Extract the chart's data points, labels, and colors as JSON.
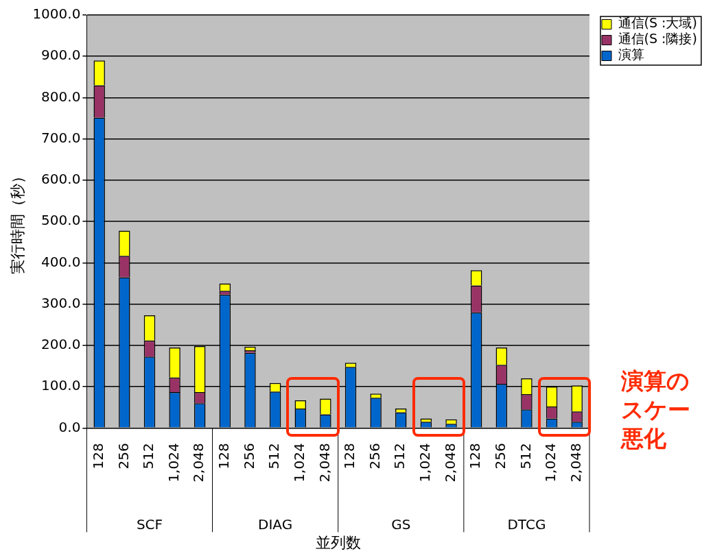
{
  "chart_data": {
    "type": "bar",
    "stacked": true,
    "xlabel": "並列数",
    "ylabel": "実行時間（秒）",
    "categories": [
      "128",
      "256",
      "512",
      "1,024",
      "2,048",
      "128",
      "256",
      "512",
      "1,024",
      "2,048",
      "128",
      "256",
      "512",
      "1,024",
      "2,048",
      "128",
      "256",
      "512",
      "1,024",
      "2,048"
    ],
    "series": [
      {
        "name": "演算",
        "color": "#0066cc",
        "values": [
          752,
          365,
          173,
          87,
          60,
          323,
          182,
          88,
          47,
          33,
          148,
          73,
          38,
          15,
          10,
          280,
          107,
          45,
          23,
          15
        ]
      },
      {
        "name": "通信(S :隣接)",
        "color": "#993366",
        "values": [
          78,
          52,
          39,
          35,
          27,
          9,
          6,
          null,
          null,
          null,
          0,
          0,
          0,
          0,
          0,
          65,
          46,
          37,
          29,
          25
        ]
      },
      {
        "name": "通信(S :大域)",
        "color": "#ffff00",
        "values": [
          60,
          61,
          61,
          73,
          111,
          18,
          9,
          21,
          20,
          38,
          10,
          10,
          9,
          8,
          11,
          37,
          42,
          38,
          48,
          63
        ]
      }
    ],
    "ylim": [
      0,
      1000
    ],
    "yticks": [
      {
        "value": 0,
        "label": "0.0"
      },
      {
        "value": 100,
        "label": "100.0"
      },
      {
        "value": 200,
        "label": "200.0"
      },
      {
        "value": 300,
        "label": "300.0"
      },
      {
        "value": 400,
        "label": "400.0"
      },
      {
        "value": 500,
        "label": "500.0"
      },
      {
        "value": 600,
        "label": "600.0"
      },
      {
        "value": 700,
        "label": "700.0"
      },
      {
        "value": 800,
        "label": "800.0"
      },
      {
        "value": 900,
        "label": "900.0"
      },
      {
        "value": 1000,
        "label": "1000.0"
      }
    ],
    "grid": "y",
    "legend": "top right",
    "annotations": [
      "SCF",
      "DIAG",
      "GS",
      "DTCG",
      "演算のスケー悪化"
    ]
  }
}
